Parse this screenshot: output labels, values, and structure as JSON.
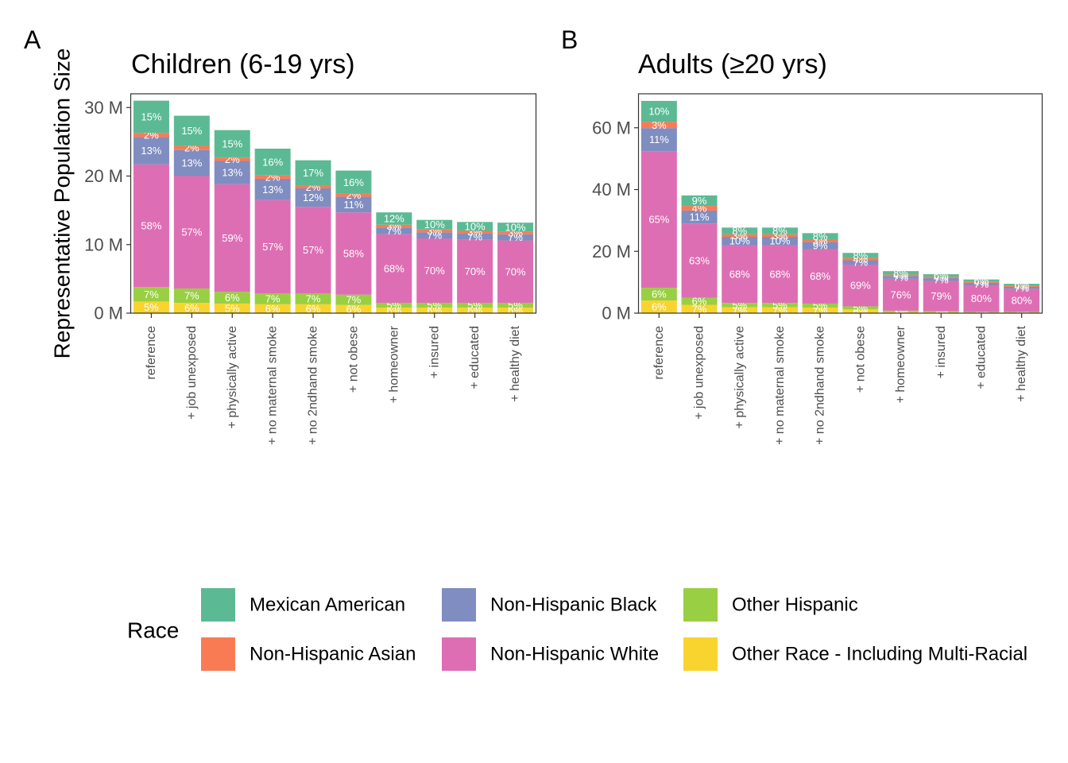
{
  "figure": {
    "y_axis_title": "Representative Population Size",
    "legend_title": "Race"
  },
  "legend": [
    {
      "name": "Mexican American",
      "color": "#5BBA94"
    },
    {
      "name": "Non-Hispanic Asian",
      "color": "#F97B54"
    },
    {
      "name": "Non-Hispanic Black",
      "color": "#7F8DC0"
    },
    {
      "name": "Non-Hispanic White",
      "color": "#DE6EB4"
    },
    {
      "name": "Other Hispanic",
      "color": "#99CF42"
    },
    {
      "name": "Other Race - Including Multi-Racial",
      "color": "#F9D42E"
    }
  ],
  "chart_data": [
    {
      "type": "bar",
      "stacked": true,
      "panel_tag": "A",
      "title": "Children (6-19 yrs)",
      "ylabel": "Representative Population Size",
      "ylim": [
        0,
        32
      ],
      "y_ticks": [
        {
          "value": 0,
          "label": "0 M"
        },
        {
          "value": 10,
          "label": "10 M"
        },
        {
          "value": 20,
          "label": "20 M"
        },
        {
          "value": 30,
          "label": "30 M"
        }
      ],
      "categories": [
        "reference",
        "+ job unexposed",
        "+ physically active",
        "+ no maternal smoke",
        "+ no 2ndhand smoke",
        "+ not obese",
        "+ homeowner",
        "+ insured",
        "+ educated",
        "+ healthy diet"
      ],
      "series": [
        {
          "name": "Other Race - Including Multi-Racial",
          "values": [
            1.7,
            1.5,
            1.4,
            1.3,
            1.3,
            1.2,
            0.8,
            0.8,
            0.8,
            0.8
          ],
          "labels": [
            "5%",
            "6%",
            "5%",
            "6%",
            "6%",
            "6%",
            "6%",
            "6%",
            "6%",
            "6%"
          ]
        },
        {
          "name": "Other Hispanic",
          "values": [
            2.1,
            2.1,
            1.7,
            1.6,
            1.6,
            1.5,
            0.7,
            0.7,
            0.7,
            0.7
          ],
          "labels": [
            "7%",
            "7%",
            "6%",
            "7%",
            "7%",
            "7%",
            "5%",
            "5%",
            "5%",
            "5%"
          ]
        },
        {
          "name": "Non-Hispanic White",
          "values": [
            17.9,
            16.4,
            15.7,
            13.6,
            12.6,
            12.0,
            10.0,
            9.4,
            9.2,
            9.1
          ],
          "labels": [
            "58%",
            "57%",
            "59%",
            "57%",
            "57%",
            "58%",
            "68%",
            "70%",
            "70%",
            "70%"
          ]
        },
        {
          "name": "Non-Hispanic Black",
          "values": [
            4.0,
            3.8,
            3.4,
            3.1,
            2.7,
            2.3,
            1.0,
            0.9,
            0.9,
            0.9
          ],
          "labels": [
            "13%",
            "13%",
            "13%",
            "13%",
            "12%",
            "11%",
            "7%",
            "7%",
            "7%",
            "7%"
          ]
        },
        {
          "name": "Non-Hispanic Asian",
          "values": [
            0.6,
            0.6,
            0.5,
            0.5,
            0.4,
            0.4,
            0.4,
            0.4,
            0.4,
            0.4
          ],
          "labels": [
            "2%",
            "2%",
            "2%",
            "2%",
            "2%",
            "2%",
            "3%",
            "3%",
            "3%",
            "3%"
          ]
        },
        {
          "name": "Mexican American",
          "values": [
            4.7,
            4.4,
            4.0,
            3.9,
            3.7,
            3.4,
            1.8,
            1.4,
            1.3,
            1.3
          ],
          "labels": [
            "15%",
            "15%",
            "15%",
            "16%",
            "17%",
            "16%",
            "12%",
            "10%",
            "10%",
            "10%"
          ]
        }
      ]
    },
    {
      "type": "bar",
      "stacked": true,
      "panel_tag": "B",
      "title": "Adults (≥20 yrs)",
      "ylim": [
        0,
        71
      ],
      "y_ticks": [
        {
          "value": 0,
          "label": "0 M"
        },
        {
          "value": 20,
          "label": "20 M"
        },
        {
          "value": 40,
          "label": "40 M"
        },
        {
          "value": 60,
          "label": "60 M"
        }
      ],
      "categories": [
        "reference",
        "+ job unexposed",
        "+ physically active",
        "+ no maternal smoke",
        "+ no 2ndhand smoke",
        "+ not obese",
        "+ homeowner",
        "+ insured",
        "+ educated",
        "+ healthy diet"
      ],
      "series": [
        {
          "name": "Other Race - Including Multi-Racial",
          "values": [
            4.1,
            2.7,
            1.9,
            1.9,
            1.8,
            1.2,
            0.4,
            0.3,
            0.2,
            0.2
          ],
          "labels": [
            "6%",
            "7%",
            "7%",
            "7%",
            "7%",
            "6%",
            "3%",
            "2%",
            "2%",
            "2%"
          ]
        },
        {
          "name": "Other Hispanic",
          "values": [
            4.1,
            2.3,
            1.4,
            1.4,
            1.3,
            1.0,
            0.4,
            0.3,
            0.2,
            0.2
          ],
          "labels": [
            "6%",
            "6%",
            "5%",
            "5%",
            "5%",
            "5%",
            "3%",
            "2%",
            "2%",
            "2%"
          ]
        },
        {
          "name": "Non-Hispanic White",
          "values": [
            44.2,
            24.0,
            18.7,
            18.7,
            17.6,
            13.5,
            10.3,
            9.8,
            8.6,
            7.4
          ],
          "labels": [
            "65%",
            "63%",
            "68%",
            "68%",
            "68%",
            "69%",
            "76%",
            "79%",
            "80%",
            "80%"
          ]
        },
        {
          "name": "Non-Hispanic Black",
          "values": [
            7.5,
            4.2,
            2.7,
            2.7,
            2.3,
            1.4,
            0.9,
            0.9,
            0.8,
            0.7
          ],
          "labels": [
            "11%",
            "11%",
            "10%",
            "10%",
            "9%",
            "7%",
            "7%",
            "7%",
            "7%",
            "7%"
          ]
        },
        {
          "name": "Non-Hispanic Asian",
          "values": [
            2.0,
            1.5,
            0.8,
            0.8,
            0.8,
            0.8,
            0.5,
            0.5,
            0.4,
            0.4
          ],
          "labels": [
            "3%",
            "4%",
            "3%",
            "3%",
            "3%",
            "4%",
            "4%",
            "4%",
            "4%",
            "4%"
          ]
        },
        {
          "name": "Mexican American",
          "values": [
            6.8,
            3.4,
            2.2,
            2.2,
            2.1,
            1.6,
            1.1,
            0.8,
            0.7,
            0.6
          ],
          "labels": [
            "10%",
            "9%",
            "8%",
            "8%",
            "8%",
            "8%",
            "8%",
            "6%",
            "6%",
            "6%"
          ]
        }
      ]
    }
  ]
}
